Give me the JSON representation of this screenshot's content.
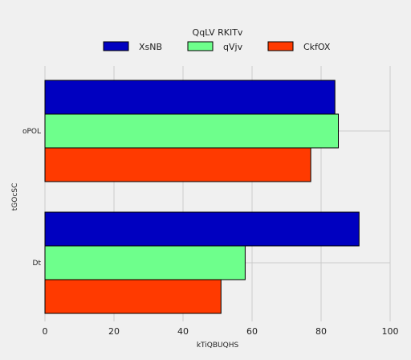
{
  "chart_data": {
    "type": "bar",
    "orientation": "horizontal",
    "categories": [
      "oPOL",
      "Dt"
    ],
    "series": [
      {
        "name": "XsNB",
        "color": "#0000c0",
        "values": [
          84,
          91
        ]
      },
      {
        "name": "qVjv",
        "color": "#6eff8c",
        "values": [
          85,
          58
        ]
      },
      {
        "name": "CkfOX",
        "color": "#ff3a00",
        "values": [
          77,
          51
        ]
      }
    ],
    "xlabel": "kTiQBUQHS",
    "ylabel": "tGOcSC",
    "xlim": [
      0,
      100
    ],
    "xticks": [
      0,
      20,
      40,
      60,
      80,
      100
    ],
    "legend": {
      "title": "QqLV RKITv",
      "position": "top-center"
    },
    "grid": true
  }
}
